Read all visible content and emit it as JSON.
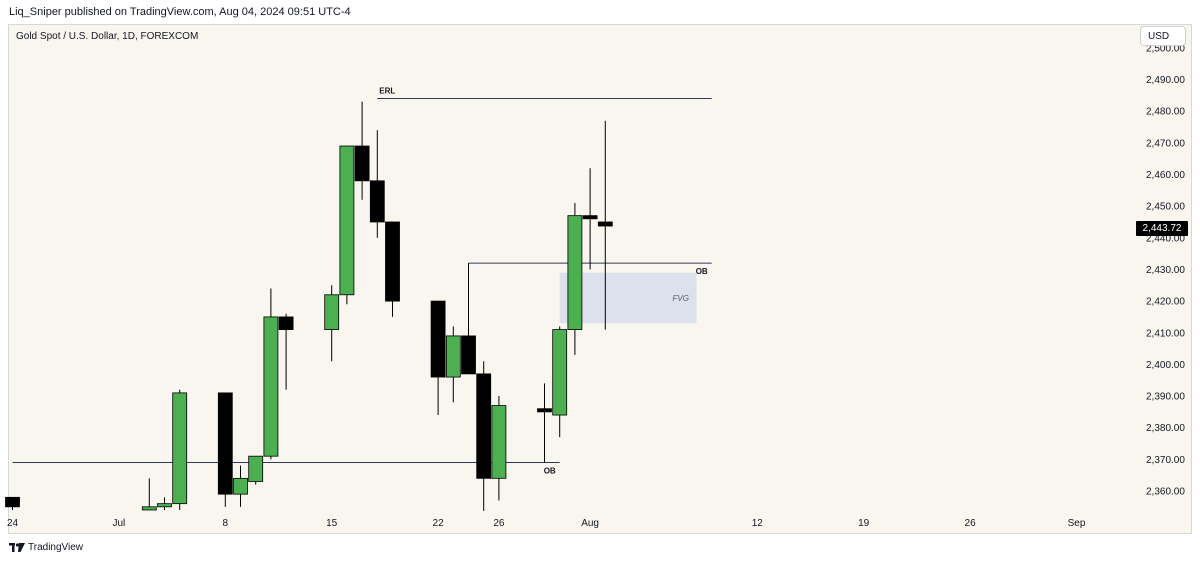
{
  "header": {
    "publisher_text": "Liq_Sniper published on TradingView.com, Aug 04, 2024 09:51 UTC-4"
  },
  "symbol_info": "Gold Spot / U.S. Dollar, 1D, FOREXCOM",
  "currency": "USD",
  "last_price_label": "2,443.72",
  "footer": {
    "brand": "TradingView"
  },
  "icons": {
    "brand_logo": "tradingview-logo-icon"
  },
  "colors": {
    "bull": "#4caf50",
    "bear": "#000000",
    "background": "#f9f6ef",
    "fvg_fill": "#dde1ee",
    "line": "#2f3a57"
  },
  "chart_data": {
    "type": "candlestick",
    "title": "Gold Spot / U.S. Dollar, 1D, FOREXCOM",
    "ylim": [
      2354,
      2504
    ],
    "y_axis_side": "right",
    "y_ticks": [
      2360,
      2370,
      2380,
      2390,
      2400,
      2410,
      2420,
      2430,
      2440,
      2450,
      2460,
      2470,
      2480,
      2490,
      2500
    ],
    "y_tick_labels": [
      "2,360.00",
      "2,370.00",
      "2,380.00",
      "2,390.00",
      "2,400.00",
      "2,410.00",
      "2,420.00",
      "2,430.00",
      "2,440.00",
      "2,450.00",
      "2,460.00",
      "2,470.00",
      "2,480.00",
      "2,490.00",
      "2,500.00"
    ],
    "x_ticks": [
      {
        "label": "24",
        "date": "2024-06-24"
      },
      {
        "label": "Jul",
        "date": "2024-07-01"
      },
      {
        "label": "8",
        "date": "2024-07-08"
      },
      {
        "label": "15",
        "date": "2024-07-15"
      },
      {
        "label": "22",
        "date": "2024-07-22"
      },
      {
        "label": "26",
        "date": "2024-07-26"
      },
      {
        "label": "Aug",
        "date": "2024-08-01"
      },
      {
        "label": "12",
        "date": "2024-08-12"
      },
      {
        "label": "19",
        "date": "2024-08-19"
      },
      {
        "label": "26",
        "date": "2024-08-26"
      },
      {
        "label": "Sep",
        "date": "2024-09-02"
      }
    ],
    "candles": [
      {
        "date": "2024-06-24",
        "open": 2358,
        "high": 2358,
        "low": 2354,
        "close": 2355
      },
      {
        "date": "2024-07-03",
        "open": 2354,
        "high": 2364,
        "low": 2354,
        "close": 2355
      },
      {
        "date": "2024-07-04",
        "open": 2355,
        "high": 2358,
        "low": 2354,
        "close": 2356
      },
      {
        "date": "2024-07-05",
        "open": 2356,
        "high": 2392,
        "low": 2354,
        "close": 2391
      },
      {
        "date": "2024-07-08",
        "open": 2391,
        "high": 2391,
        "low": 2355,
        "close": 2359
      },
      {
        "date": "2024-07-09",
        "open": 2359,
        "high": 2368,
        "low": 2355,
        "close": 2364
      },
      {
        "date": "2024-07-10",
        "open": 2363,
        "high": 2371,
        "low": 2362,
        "close": 2371
      },
      {
        "date": "2024-07-11",
        "open": 2371,
        "high": 2424,
        "low": 2370,
        "close": 2415
      },
      {
        "date": "2024-07-12",
        "open": 2415,
        "high": 2416,
        "low": 2392,
        "close": 2411
      },
      {
        "date": "2024-07-15",
        "open": 2411,
        "high": 2425,
        "low": 2401,
        "close": 2422
      },
      {
        "date": "2024-07-16",
        "open": 2422,
        "high": 2469,
        "low": 2419,
        "close": 2469
      },
      {
        "date": "2024-07-17",
        "open": 2469,
        "high": 2483,
        "low": 2452,
        "close": 2458
      },
      {
        "date": "2024-07-18",
        "open": 2458,
        "high": 2474,
        "low": 2440,
        "close": 2445
      },
      {
        "date": "2024-07-19",
        "open": 2445,
        "high": 2445,
        "low": 2415,
        "close": 2420
      },
      {
        "date": "2024-07-22",
        "open": 2420,
        "high": 2420,
        "low": 2384,
        "close": 2396
      },
      {
        "date": "2024-07-23",
        "open": 2396,
        "high": 2412,
        "low": 2388,
        "close": 2409
      },
      {
        "date": "2024-07-24",
        "open": 2409,
        "high": 2432,
        "low": 2397,
        "close": 2397
      },
      {
        "date": "2024-07-25",
        "open": 2397,
        "high": 2401,
        "low": 2353,
        "close": 2364
      },
      {
        "date": "2024-07-26",
        "open": 2364,
        "high": 2390,
        "low": 2357,
        "close": 2387
      },
      {
        "date": "2024-07-29",
        "open": 2386,
        "high": 2394,
        "low": 2369,
        "close": 2385
      },
      {
        "date": "2024-07-30",
        "open": 2384,
        "high": 2412,
        "low": 2377,
        "close": 2411
      },
      {
        "date": "2024-07-31",
        "open": 2411,
        "high": 2451,
        "low": 2403,
        "close": 2447
      },
      {
        "date": "2024-08-01",
        "open": 2447,
        "high": 2462,
        "low": 2430,
        "close": 2446
      },
      {
        "date": "2024-08-02",
        "open": 2445,
        "high": 2477,
        "low": 2411,
        "close": 2443.72
      }
    ],
    "annotations": [
      {
        "kind": "hline",
        "label": "ERL",
        "price": 2484,
        "from_date": "2024-07-18",
        "to_date": "2024-08-09",
        "label_side": "left"
      },
      {
        "kind": "hline",
        "label": "OB",
        "price": 2432,
        "from_date": "2024-07-24",
        "to_date": "2024-08-09",
        "label_side": "right"
      },
      {
        "kind": "hline",
        "label": "OB",
        "price": 2369,
        "from_date": "2024-06-24",
        "to_date": "2024-07-30",
        "label_side": "right"
      },
      {
        "kind": "zone",
        "label": "FVG",
        "price_top": 2429,
        "price_bottom": 2413,
        "from_date": "2024-07-30",
        "to_date": "2024-08-08"
      }
    ],
    "grid": false,
    "legend": "none"
  }
}
